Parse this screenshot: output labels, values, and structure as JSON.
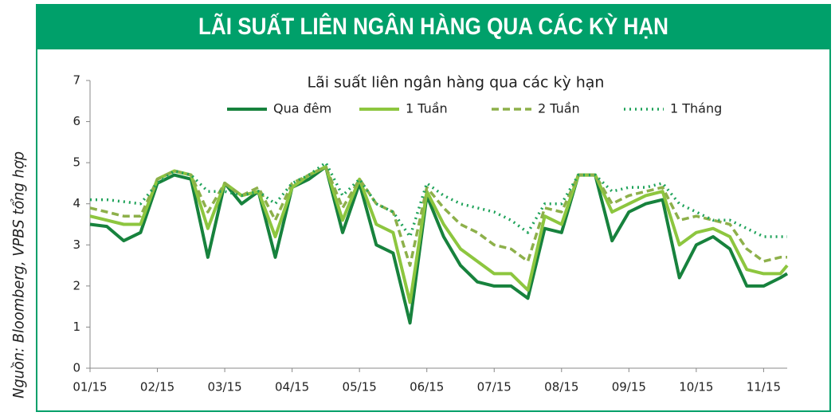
{
  "header": {
    "title": "LÃI SUẤT LIÊN NGÂN HÀNG QUA CÁC KỲ HẠN"
  },
  "source": "Nguồn: Bloomberg, VPBS tổng hợp",
  "chart_data": {
    "type": "line",
    "title": "Lãi suất liên ngân hàng qua các kỳ hạn",
    "x": [
      0,
      0.25,
      0.5,
      0.75,
      1,
      1.25,
      1.5,
      1.75,
      2,
      2.25,
      2.5,
      2.75,
      3,
      3.25,
      3.5,
      3.75,
      4,
      4.25,
      4.5,
      4.75,
      5,
      5.25,
      5.5,
      5.75,
      6,
      6.25,
      6.5,
      6.75,
      7,
      7.25,
      7.5,
      7.75,
      8,
      8.25,
      8.5,
      8.75,
      9,
      9.25,
      9.5,
      9.75,
      10,
      10.25,
      10.35
    ],
    "xlim": [
      0,
      10.35
    ],
    "xticks": [
      {
        "value": 0,
        "label": "01/15"
      },
      {
        "value": 1,
        "label": "02/15"
      },
      {
        "value": 2,
        "label": "03/15"
      },
      {
        "value": 3,
        "label": "04/15"
      },
      {
        "value": 4,
        "label": "05/15"
      },
      {
        "value": 5,
        "label": "06/15"
      },
      {
        "value": 6,
        "label": "07/15"
      },
      {
        "value": 7,
        "label": "08/15"
      },
      {
        "value": 8,
        "label": "09/15"
      },
      {
        "value": 9,
        "label": "10/15"
      },
      {
        "value": 10,
        "label": "11/15"
      }
    ],
    "ylim": [
      0,
      7
    ],
    "yticks": [
      0,
      1,
      2,
      3,
      4,
      5,
      6,
      7
    ],
    "grid": false,
    "series": [
      {
        "name": "Qua đêm",
        "color": "#17823d",
        "style": "solid",
        "values": [
          3.5,
          3.45,
          3.1,
          3.3,
          4.5,
          4.7,
          4.6,
          2.7,
          4.5,
          4.0,
          4.3,
          2.7,
          4.4,
          4.6,
          4.9,
          3.3,
          4.5,
          3.0,
          2.8,
          1.1,
          4.2,
          3.2,
          2.5,
          2.1,
          2.0,
          2.0,
          1.7,
          3.4,
          3.3,
          4.7,
          4.7,
          3.1,
          3.8,
          4.0,
          4.1,
          2.2,
          3.0,
          3.2,
          2.9,
          2.0,
          2.0,
          2.2,
          2.3
        ]
      },
      {
        "name": "1 Tuần",
        "color": "#8dc63f",
        "style": "solid",
        "values": [
          3.7,
          3.6,
          3.5,
          3.5,
          4.6,
          4.8,
          4.7,
          3.4,
          4.5,
          4.2,
          4.3,
          3.2,
          4.4,
          4.7,
          4.9,
          3.6,
          4.6,
          3.5,
          3.3,
          1.6,
          4.3,
          3.5,
          2.9,
          2.6,
          2.3,
          2.3,
          1.9,
          3.7,
          3.5,
          4.7,
          4.7,
          3.8,
          4.0,
          4.2,
          4.3,
          3.0,
          3.3,
          3.4,
          3.2,
          2.4,
          2.3,
          2.3,
          2.5
        ]
      },
      {
        "name": "2 Tuần",
        "color": "#8db04a",
        "style": "dashed",
        "values": [
          3.9,
          3.8,
          3.7,
          3.7,
          4.6,
          4.8,
          4.7,
          3.8,
          4.5,
          4.2,
          4.4,
          3.6,
          4.5,
          4.7,
          4.9,
          3.9,
          4.6,
          4.0,
          3.8,
          2.5,
          4.4,
          3.9,
          3.5,
          3.3,
          3.0,
          2.9,
          2.6,
          3.9,
          3.8,
          4.7,
          4.7,
          4.0,
          4.2,
          4.3,
          4.4,
          3.6,
          3.7,
          3.6,
          3.5,
          2.9,
          2.6,
          2.7,
          2.7
        ]
      },
      {
        "name": "1 Tháng",
        "color": "#1fa35a",
        "style": "dotted",
        "values": [
          4.1,
          4.1,
          4.05,
          4.0,
          4.5,
          4.8,
          4.7,
          4.3,
          4.3,
          4.2,
          4.3,
          4.0,
          4.5,
          4.7,
          5.0,
          4.2,
          4.6,
          4.0,
          3.8,
          3.2,
          4.5,
          4.2,
          4.0,
          3.9,
          3.8,
          3.6,
          3.3,
          4.0,
          4.0,
          4.7,
          4.7,
          4.3,
          4.4,
          4.4,
          4.5,
          4.0,
          3.8,
          3.6,
          3.6,
          3.4,
          3.2,
          3.2,
          3.2
        ]
      }
    ]
  }
}
